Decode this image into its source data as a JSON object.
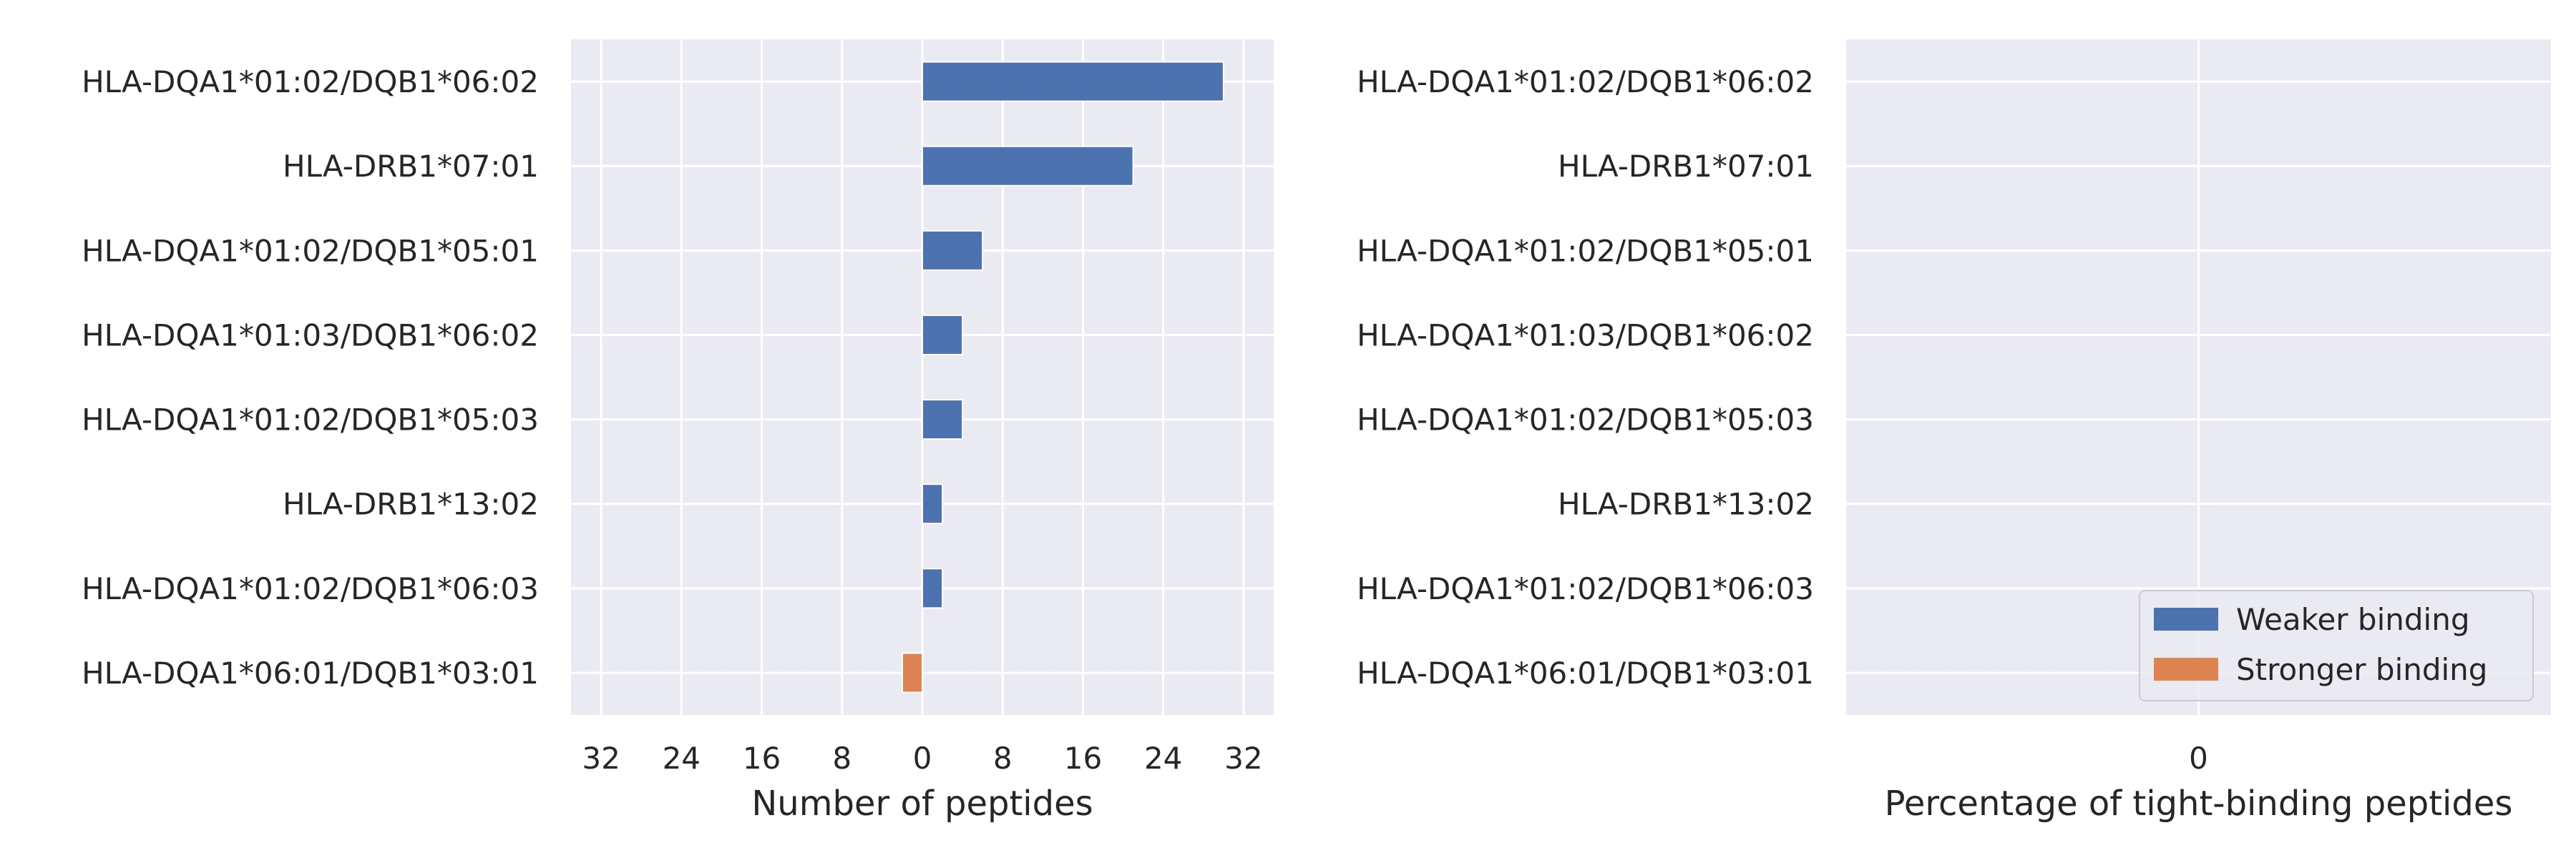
{
  "chart_data": [
    {
      "type": "bar",
      "orientation": "horizontal",
      "categories": [
        "HLA-DQA1*01:02/DQB1*06:02",
        "HLA-DRB1*07:01",
        "HLA-DQA1*01:02/DQB1*05:01",
        "HLA-DQA1*01:03/DQB1*06:02",
        "HLA-DQA1*01:02/DQB1*05:03",
        "HLA-DRB1*13:02",
        "HLA-DQA1*01:02/DQB1*06:03",
        "HLA-DQA1*06:01/DQB1*03:01"
      ],
      "series": [
        {
          "name": "Weaker binding",
          "color": "#4c72b0",
          "values": [
            30,
            21,
            6,
            4,
            4,
            2,
            2,
            0
          ]
        },
        {
          "name": "Stronger binding",
          "color": "#dd8452",
          "values": [
            0,
            0,
            0,
            0,
            0,
            0,
            0,
            -2
          ]
        }
      ],
      "xlabel": "Number of peptides",
      "xlim": [
        -35,
        35
      ],
      "xticks": [
        -32,
        -24,
        -16,
        -8,
        0,
        8,
        16,
        24,
        32
      ],
      "xtick_labels": [
        "32",
        "24",
        "16",
        "8",
        "0",
        "8",
        "16",
        "24",
        "32"
      ],
      "grid": true
    },
    {
      "type": "bar",
      "orientation": "horizontal",
      "categories": [
        "HLA-DQA1*01:02/DQB1*06:02",
        "HLA-DRB1*07:01",
        "HLA-DQA1*01:02/DQB1*05:01",
        "HLA-DQA1*01:03/DQB1*06:02",
        "HLA-DQA1*01:02/DQB1*05:03",
        "HLA-DRB1*13:02",
        "HLA-DQA1*01:02/DQB1*06:03",
        "HLA-DQA1*06:01/DQB1*03:01"
      ],
      "series": [
        {
          "name": "Weaker binding",
          "color": "#4c72b0",
          "values": [
            0,
            0,
            0,
            0,
            0,
            0,
            0,
            0
          ]
        },
        {
          "name": "Stronger binding",
          "color": "#dd8452",
          "values": [
            0,
            0,
            0,
            0,
            0,
            0,
            0,
            0
          ]
        }
      ],
      "xlabel": "Percentage of tight-binding peptides",
      "xticks": [
        0
      ],
      "xtick_labels": [
        "0"
      ],
      "grid": true,
      "legend": {
        "position": "lower-right",
        "entries": [
          "Weaker binding",
          "Stronger binding"
        ]
      }
    }
  ]
}
